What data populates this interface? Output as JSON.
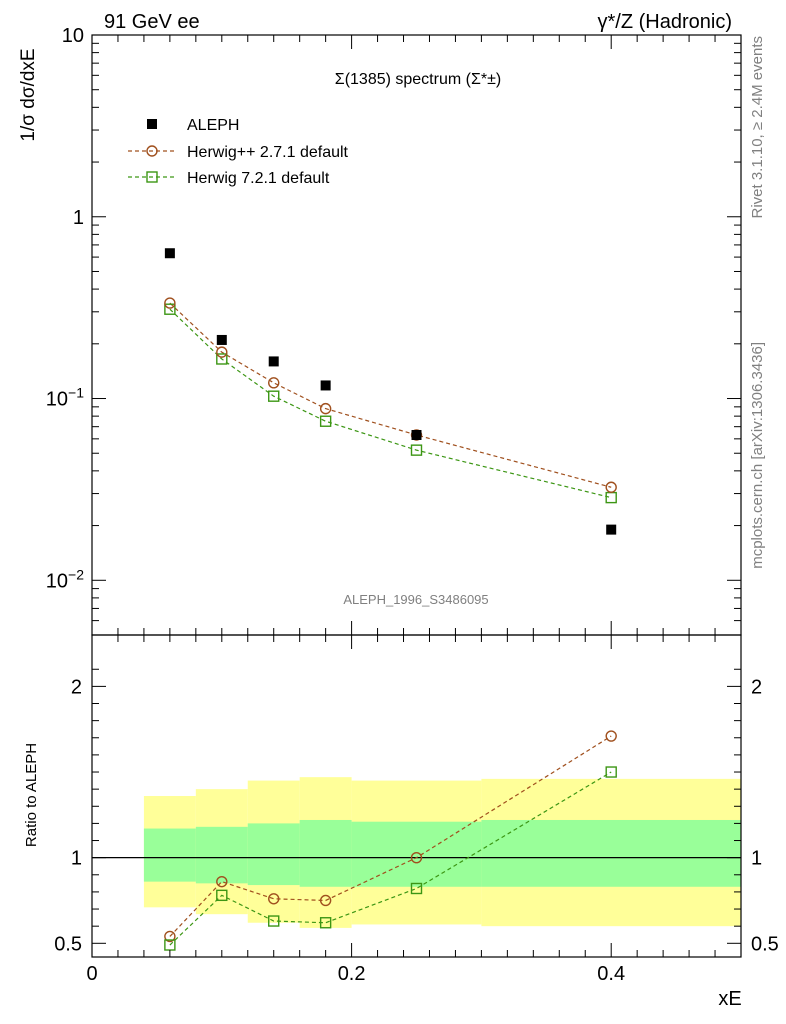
{
  "header": {
    "left": "91 GeV ee",
    "right": "γ*/Z (Hadronic)"
  },
  "side_labels": {
    "top": "Rivet 3.1.10, ≥ 2.4M events",
    "bottom": "mcplots.cern.ch [arXiv:1306.3436]"
  },
  "watermark": "ALEPH_1996_S3486095",
  "colors": {
    "data": "#000000",
    "herwigpp": "#a0501e",
    "herwig7": "#3c9614",
    "band_inner": "#99ff99",
    "band_outer": "#ffff99"
  },
  "chart_data": [
    {
      "type": "scatter",
      "panel": "main",
      "title": "Σ(1385) spectrum (Σ*±)",
      "ylabel": "1/σ dσ/dxE",
      "yscale": "log",
      "xlim": [
        0,
        0.5
      ],
      "ylim": [
        0.005,
        10
      ],
      "yticks": [
        {
          "value": 10,
          "label": "10"
        },
        {
          "value": 1,
          "label": "1"
        },
        {
          "value": 0.1,
          "label": "10−1"
        },
        {
          "value": 0.01,
          "label": "10−2"
        }
      ],
      "legend_position": "top-left",
      "series": [
        {
          "name": "ALEPH",
          "kind": "data",
          "marker": "square-filled",
          "x": [
            0.06,
            0.1,
            0.14,
            0.18,
            0.25,
            0.4
          ],
          "y": [
            0.63,
            0.21,
            0.16,
            0.118,
            0.063,
            0.019
          ]
        },
        {
          "name": "Herwig++ 2.7.1 default",
          "kind": "mc",
          "marker": "circle-open",
          "line": "dashed",
          "x": [
            0.06,
            0.1,
            0.14,
            0.18,
            0.25,
            0.4
          ],
          "y": [
            0.335,
            0.18,
            0.122,
            0.088,
            0.063,
            0.0325
          ]
        },
        {
          "name": "Herwig 7.2.1 default",
          "kind": "mc",
          "marker": "square-open",
          "line": "dashed",
          "x": [
            0.06,
            0.1,
            0.14,
            0.18,
            0.25,
            0.4
          ],
          "y": [
            0.31,
            0.165,
            0.103,
            0.075,
            0.052,
            0.0285
          ]
        }
      ]
    },
    {
      "type": "line",
      "panel": "ratio",
      "ylabel": "Ratio to ALEPH",
      "xlabel": "xE",
      "xlim": [
        0,
        0.5
      ],
      "ylim": [
        0.42,
        2.3
      ],
      "xticks": [
        {
          "value": 0,
          "label": "0"
        },
        {
          "value": 0.2,
          "label": "0.2"
        },
        {
          "value": 0.4,
          "label": "0.4"
        }
      ],
      "yticks": [
        {
          "value": 2,
          "label": "2"
        },
        {
          "value": 1,
          "label": "1"
        },
        {
          "value": 0.5,
          "label": "0.5"
        }
      ],
      "bands": [
        {
          "xlo": 0.04,
          "xhi": 0.08,
          "inner_lo": 0.86,
          "inner_hi": 1.17,
          "outer_lo": 0.71,
          "outer_hi": 1.36
        },
        {
          "xlo": 0.08,
          "xhi": 0.12,
          "inner_lo": 0.85,
          "inner_hi": 1.18,
          "outer_lo": 0.67,
          "outer_hi": 1.4
        },
        {
          "xlo": 0.12,
          "xhi": 0.16,
          "inner_lo": 0.84,
          "inner_hi": 1.2,
          "outer_lo": 0.62,
          "outer_hi": 1.45
        },
        {
          "xlo": 0.16,
          "xhi": 0.2,
          "inner_lo": 0.83,
          "inner_hi": 1.22,
          "outer_lo": 0.59,
          "outer_hi": 1.47
        },
        {
          "xlo": 0.2,
          "xhi": 0.3,
          "inner_lo": 0.83,
          "inner_hi": 1.21,
          "outer_lo": 0.61,
          "outer_hi": 1.45
        },
        {
          "xlo": 0.3,
          "xhi": 0.5,
          "inner_lo": 0.83,
          "inner_hi": 1.22,
          "outer_lo": 0.6,
          "outer_hi": 1.46
        }
      ],
      "series": [
        {
          "name": "Herwig++ 2.7.1 default",
          "marker": "circle-open",
          "line": "dashed",
          "x": [
            0.06,
            0.1,
            0.14,
            0.18,
            0.25,
            0.4
          ],
          "y": [
            0.54,
            0.86,
            0.76,
            0.75,
            1.0,
            1.71
          ]
        },
        {
          "name": "Herwig 7.2.1 default",
          "marker": "square-open",
          "line": "dashed",
          "x": [
            0.06,
            0.1,
            0.14,
            0.18,
            0.25,
            0.4
          ],
          "y": [
            0.49,
            0.78,
            0.63,
            0.62,
            0.82,
            1.5
          ]
        }
      ]
    }
  ]
}
